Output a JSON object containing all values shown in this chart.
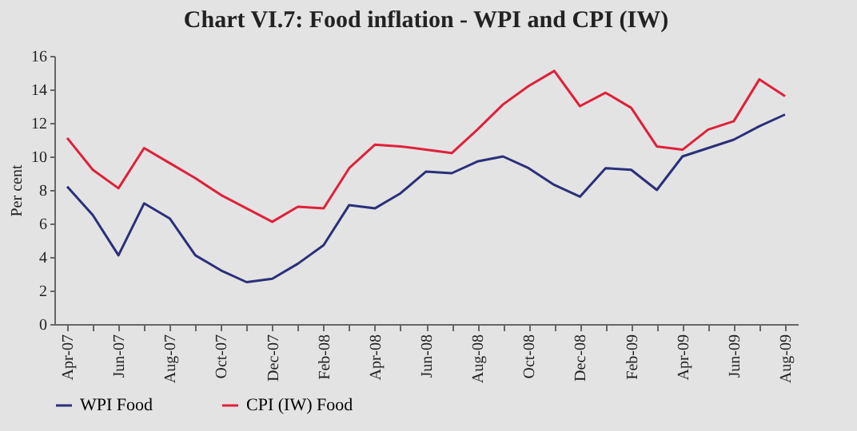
{
  "chart_data": {
    "type": "line",
    "title": "Chart VI.7: Food inflation - WPI and CPI (IW)",
    "ylabel": "Per cent",
    "categories": [
      "Apr-07",
      null,
      "Jun-07",
      null,
      "Aug-07",
      null,
      "Oct-07",
      null,
      "Dec-07",
      null,
      "Feb-08",
      null,
      "Apr-08",
      null,
      "Jun-08",
      null,
      "Aug-08",
      null,
      "Oct-08",
      null,
      "Dec-08",
      null,
      "Feb-09",
      null,
      "Apr-09",
      null,
      "Jun-09",
      null,
      "Aug-09"
    ],
    "series": [
      {
        "name": "WPI Food",
        "color": "#2b2f7a",
        "values": [
          8.2,
          6.5,
          4.1,
          7.2,
          6.3,
          4.1,
          3.2,
          2.5,
          2.7,
          3.6,
          4.7,
          7.1,
          6.9,
          7.8,
          9.1,
          9.0,
          9.7,
          10.0,
          9.3,
          8.3,
          7.6,
          9.3,
          9.2,
          8.0,
          10.0,
          10.5,
          11.0,
          11.8,
          12.5
        ]
      },
      {
        "name": "CPI (IW) Food",
        "color": "#e0203a",
        "values": [
          11.1,
          9.2,
          8.1,
          10.5,
          9.6,
          8.7,
          7.7,
          6.9,
          6.1,
          7.0,
          6.9,
          9.3,
          10.7,
          10.6,
          10.4,
          10.2,
          11.6,
          13.1,
          14.2,
          15.1,
          13.0,
          13.8,
          12.9,
          10.6,
          10.4,
          11.6,
          12.1,
          14.6,
          13.6
        ]
      }
    ],
    "ylim": [
      0,
      16
    ],
    "yticks": [
      0,
      2,
      4,
      6,
      8,
      10,
      12,
      14,
      16
    ],
    "grid": false,
    "legend": "bottom",
    "line_style": "solid"
  }
}
